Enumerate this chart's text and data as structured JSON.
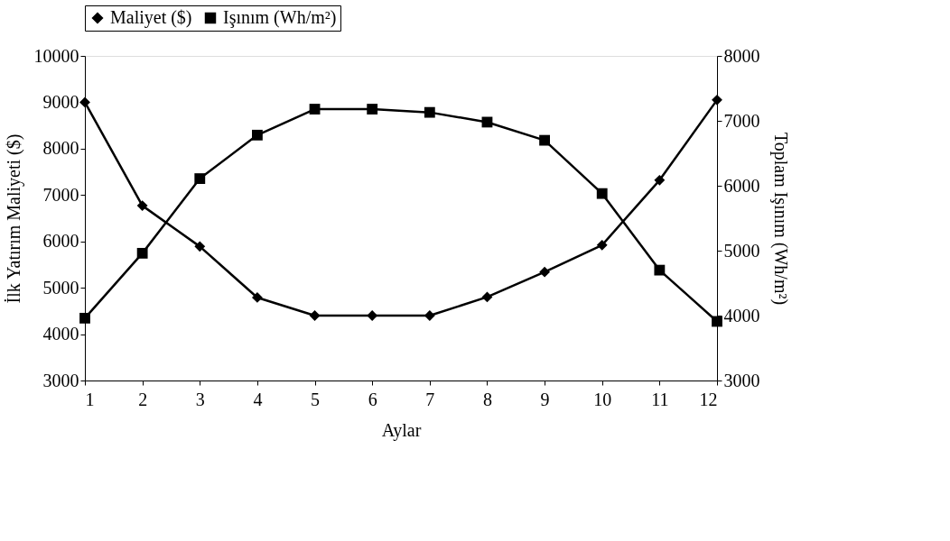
{
  "chart_data": {
    "type": "line",
    "xlabel": "Aylar",
    "ylabel": "İlk Yatırım Maliyeti ($)",
    "y2label": "Toplam Işınım (Wh/m²)",
    "x": [
      1,
      2,
      3,
      4,
      5,
      6,
      7,
      8,
      9,
      10,
      11,
      12
    ],
    "series": [
      {
        "name": "Maliyet ($)",
        "color": "#000000",
        "marker": "diamond",
        "values": [
          9000,
          6770,
          5890,
          4790,
          4400,
          4400,
          4400,
          4800,
          5340,
          5920,
          7320,
          9050
        ]
      },
      {
        "name": "Işınım (Wh/m²)",
        "color": "#000000",
        "marker": "square",
        "axis": "y2",
        "values": [
          3960,
          4960,
          6110,
          6780,
          7180,
          7180,
          7130,
          6980,
          6700,
          5880,
          4700,
          3910
        ]
      }
    ],
    "xlim": [
      1,
      12
    ],
    "xticks": [
      1,
      2,
      3,
      4,
      5,
      6,
      7,
      8,
      9,
      10,
      11,
      12
    ],
    "ylim": [
      3000,
      10000
    ],
    "yticks": [
      3000,
      4000,
      5000,
      6000,
      7000,
      8000,
      9000,
      10000
    ],
    "y2lim": [
      3000,
      8000
    ],
    "y2ticks": [
      3000,
      4000,
      5000,
      6000,
      7000,
      8000
    ],
    "grid": false,
    "legend": "top",
    "line_style": "solid"
  }
}
